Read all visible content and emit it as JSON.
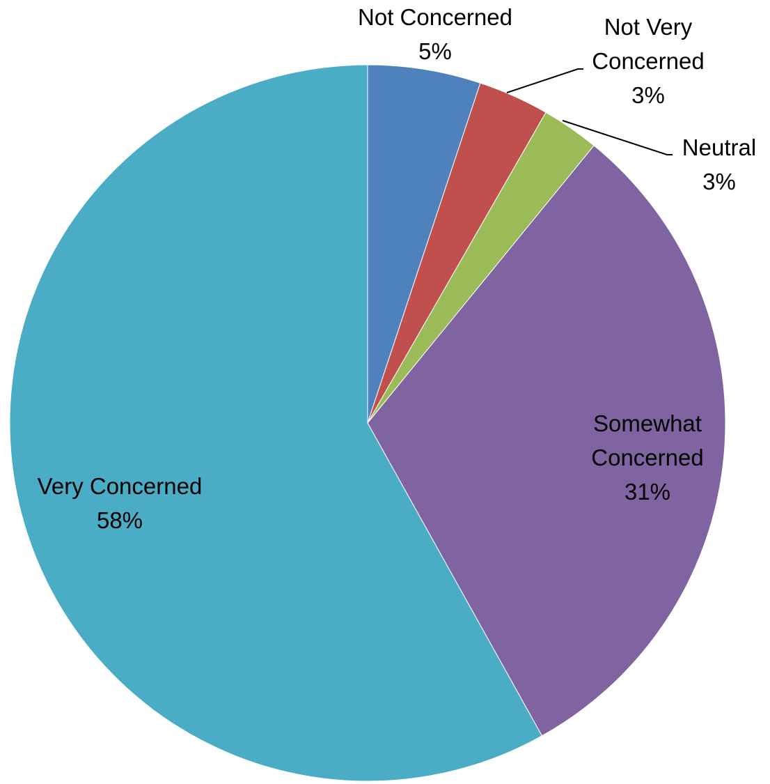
{
  "chart_data": {
    "type": "pie",
    "start_angle_deg": 0,
    "direction": "clockwise",
    "slices": [
      {
        "label_lines": [
          "Not Concerned"
        ],
        "value_label": "5%",
        "value": 5.1,
        "color": "#4F81BD"
      },
      {
        "label_lines": [
          "Not Very",
          "Concerned"
        ],
        "value_label": "3%",
        "value": 3.2,
        "color": "#C0504D"
      },
      {
        "label_lines": [
          "Neutral"
        ],
        "value_label": "3%",
        "value": 2.6,
        "color": "#9BBB59"
      },
      {
        "label_lines": [
          "Somewhat",
          "Concerned"
        ],
        "value_label": "31%",
        "value": 31.0,
        "color": "#8064A2"
      },
      {
        "label_lines": [
          "Very Concerned"
        ],
        "value_label": "58%",
        "value": 58.1,
        "color": "#4BACC6"
      }
    ]
  }
}
